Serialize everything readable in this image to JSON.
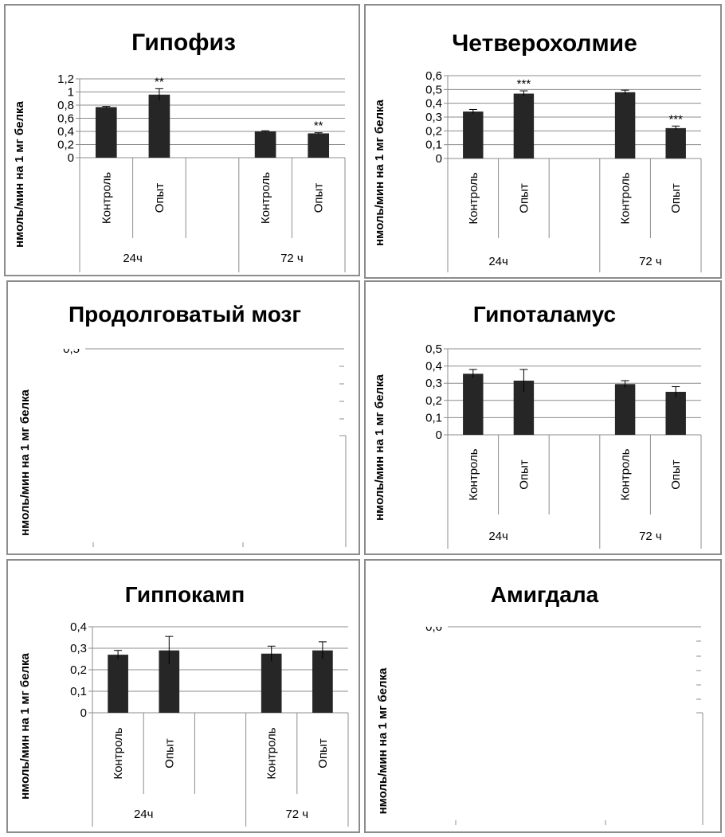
{
  "chart_data": [
    {
      "type": "bar",
      "title": "Гипофиз",
      "ylabel": "нмоль/мин на 1 мг белка",
      "ylim": [
        0,
        1.2
      ],
      "yticks": [
        "0",
        "0,2",
        "0,4",
        "0,6",
        "0,8",
        "1",
        "1,2"
      ],
      "groups": [
        "24ч",
        "72 ч"
      ],
      "categories": [
        "Контроль",
        "Опыт",
        "Контроль",
        "Опыт"
      ],
      "values": [
        0.77,
        0.96,
        0.4,
        0.37
      ],
      "errors": [
        0.01,
        0.09,
        0.01,
        0.01
      ],
      "significance": [
        "",
        "**",
        "",
        "**"
      ],
      "grid": true,
      "complete": true
    },
    {
      "type": "bar",
      "title": "Четверохолмие",
      "ylabel": "нмоль/мин на 1 мг белка",
      "ylim": [
        0,
        0.6
      ],
      "yticks": [
        "0",
        "0,1",
        "0,2",
        "0,3",
        "0,4",
        "0,5",
        "0,6"
      ],
      "groups": [
        "24ч",
        "72 ч"
      ],
      "categories": [
        "Контроль",
        "Опыт",
        "Контроль",
        "Опыт"
      ],
      "values": [
        0.34,
        0.47,
        0.48,
        0.22
      ],
      "errors": [
        0.015,
        0.02,
        0.015,
        0.015
      ],
      "significance": [
        "",
        "***",
        "",
        "***"
      ],
      "grid": true,
      "complete": true
    },
    {
      "type": "bar",
      "title": "Продолговатый мозг",
      "ylabel": "нмоль/мин на 1 мг белка",
      "ylim": [
        0,
        0.5
      ],
      "yticks": [
        "0,5"
      ],
      "groups": [
        "",
        ""
      ],
      "categories": [],
      "values": [],
      "errors": [],
      "significance": [],
      "grid": true,
      "complete": false
    },
    {
      "type": "bar",
      "title": "Гипоталамус",
      "ylabel": "нмоль/мин на 1 мг белка",
      "ylim": [
        0,
        0.5
      ],
      "yticks": [
        "0",
        "0,1",
        "0,2",
        "0,3",
        "0,4",
        "0,5"
      ],
      "groups": [
        "24ч",
        "72 ч"
      ],
      "categories": [
        "Контроль",
        "Опыт",
        "Контроль",
        "Опыт"
      ],
      "values": [
        0.355,
        0.315,
        0.295,
        0.25
      ],
      "errors": [
        0.025,
        0.065,
        0.02,
        0.03
      ],
      "significance": [
        "",
        "",
        "",
        ""
      ],
      "grid": true,
      "complete": true
    },
    {
      "type": "bar",
      "title": "Гиппокамп",
      "ylabel": "нмоль/мин на 1 мг белка",
      "ylim": [
        0,
        0.4
      ],
      "yticks": [
        "0",
        "0,1",
        "0,2",
        "0,3",
        "0,4"
      ],
      "groups": [
        "24ч",
        "72 ч"
      ],
      "categories": [
        "Контроль",
        "Опыт",
        "Контроль",
        "Опыт"
      ],
      "values": [
        0.27,
        0.29,
        0.275,
        0.29
      ],
      "errors": [
        0.02,
        0.065,
        0.035,
        0.04
      ],
      "significance": [
        "",
        "",
        "",
        ""
      ],
      "grid": true,
      "complete": true
    },
    {
      "type": "bar",
      "title": "Амигдала",
      "ylabel": "нмоль/мин на 1 мг белка",
      "ylim": [
        0,
        0.6
      ],
      "yticks": [
        "0,6"
      ],
      "groups": [
        "",
        ""
      ],
      "categories": [],
      "values": [],
      "errors": [],
      "significance": [],
      "grid": true,
      "complete": false
    }
  ],
  "colors": {
    "bar": "#262626",
    "grid": "#8c8c8c",
    "axis": "#8c8c8c",
    "panel_border": "#8c8c8c",
    "text": "#000000"
  }
}
